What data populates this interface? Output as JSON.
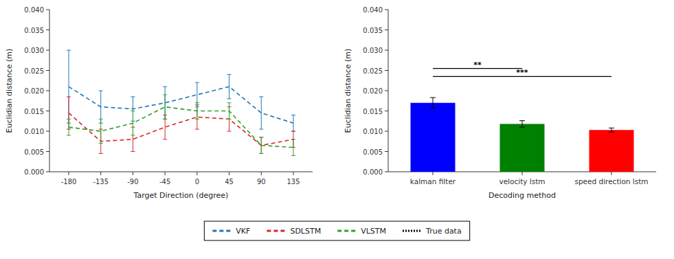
{
  "chart_data": [
    {
      "type": "line",
      "xlabel": "Target Direction (degree)",
      "ylabel": "Euclidian distance (m)",
      "x": [
        -180,
        -135,
        -90,
        -45,
        0,
        45,
        90,
        135
      ],
      "xlim": [
        -207,
        162
      ],
      "xticks": [
        -180,
        -135,
        -90,
        -45,
        0,
        45,
        90,
        135
      ],
      "ylim": [
        0.0,
        0.04
      ],
      "yticks": [
        {
          "value": 0,
          "label": "0.000"
        },
        0.005,
        {
          "value": 0.01,
          "label": "0.010"
        },
        0.015,
        {
          "value": 0.02,
          "label": "0.020"
        },
        0.025,
        {
          "value": 0.03,
          "label": "0.030"
        },
        0.035,
        {
          "value": 0.04,
          "label": "0.040"
        }
      ],
      "grid": false,
      "legend": "bottom",
      "series": [
        {
          "name": "VKF",
          "color": "#1f77b4",
          "line_style": "dashed",
          "values": [
            0.021,
            0.016,
            0.0155,
            0.017,
            0.019,
            0.021,
            0.0145,
            0.012
          ],
          "errors": [
            0.009,
            0.004,
            0.003,
            0.004,
            0.003,
            0.003,
            0.004,
            0.002
          ]
        },
        {
          "name": "SDLSTM",
          "color": "#d62728",
          "line_style": "dashed",
          "values": [
            0.0145,
            0.0075,
            0.008,
            0.011,
            0.0135,
            0.013,
            0.0065,
            0.008
          ],
          "errors": [
            0.004,
            0.003,
            0.003,
            0.003,
            0.003,
            0.003,
            0.002,
            0.002
          ]
        },
        {
          "name": "VLSTM",
          "color": "#2ca02c",
          "line_style": "dashed",
          "values": [
            0.011,
            0.01,
            0.012,
            0.016,
            0.015,
            0.015,
            0.0065,
            0.006
          ],
          "errors": [
            0.002,
            0.003,
            0.003,
            0.003,
            0.002,
            0.002,
            0.002,
            0.002
          ]
        },
        {
          "name": "True data",
          "color": "#000000",
          "line_style": "dotted",
          "values": [
            null,
            null,
            null,
            null,
            null,
            null,
            null,
            null
          ]
        }
      ]
    },
    {
      "type": "bar",
      "xlabel": "Decoding method",
      "ylabel": "Euclidian distance (m)",
      "categories": [
        "kalman filter",
        "velocity lstm",
        "speed direction lstm"
      ],
      "values": [
        0.017,
        0.0118,
        0.0103
      ],
      "errors": [
        0.0013,
        0.0008,
        0.0005
      ],
      "colors": [
        "#0000ff",
        "#008000",
        "#ff0000"
      ],
      "ylim": [
        0.0,
        0.04
      ],
      "yticks": [
        {
          "value": 0,
          "label": "0.000"
        },
        0.005,
        {
          "value": 0.01,
          "label": "0.010"
        },
        0.015,
        {
          "value": 0.02,
          "label": "0.020"
        },
        0.025,
        {
          "value": 0.03,
          "label": "0.030"
        },
        0.035,
        {
          "value": 0.04,
          "label": "0.040"
        }
      ],
      "grid": false,
      "annotations": [
        {
          "text": "**",
          "from": "kalman filter",
          "to": "velocity lstm",
          "y": 0.0255
        },
        {
          "text": "***",
          "from": "kalman filter",
          "to": "speed direction lstm",
          "y": 0.0235
        }
      ]
    }
  ]
}
